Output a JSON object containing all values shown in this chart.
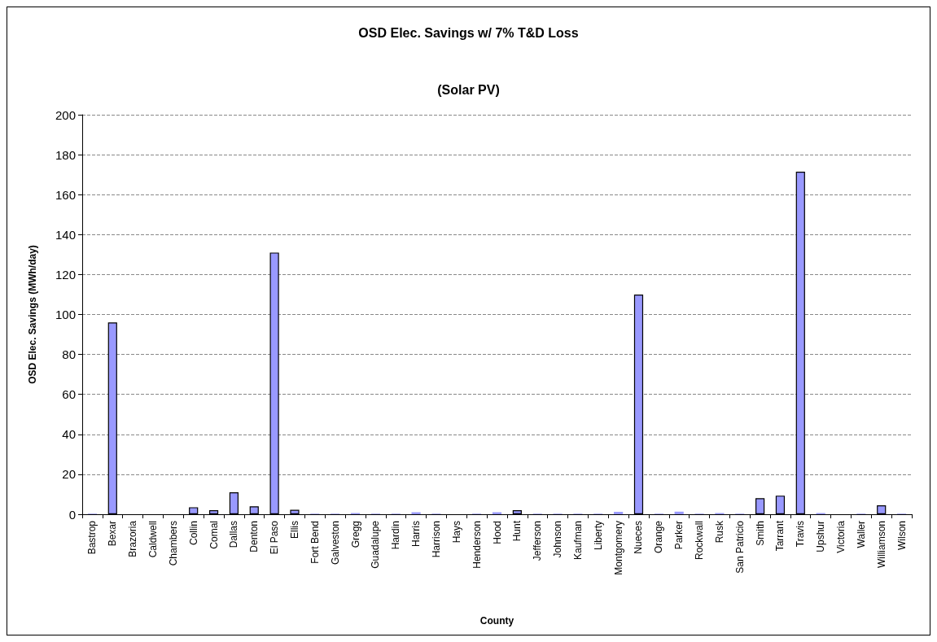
{
  "chart_data": {
    "type": "bar",
    "title": "OSD Elec. Savings w/ 7% T&D Loss",
    "subtitle": "(Solar PV)",
    "xlabel": "County",
    "ylabel": "OSD Elec. Savings (MWh/day)",
    "categories": [
      "Bastrop",
      "Bexar",
      "Brazoria",
      "Caldwell",
      "Chambers",
      "Collin",
      "Comal",
      "Dallas",
      "Denton",
      "El Paso",
      "Ellis",
      "Fort Bend",
      "Galveston",
      "Gregg",
      "Guadalupe",
      "Hardin",
      "Harris",
      "Harrison",
      "Hays",
      "Henderson",
      "Hood",
      "Hunt",
      "Jefferson",
      "Johnson",
      "Kaufman",
      "Liberty",
      "Montgomery",
      "Nueces",
      "Orange",
      "Parker",
      "Rockwall",
      "Rusk",
      "San Patricio",
      "Smith",
      "Tarrant",
      "Travis",
      "Upshur",
      "Victoria",
      "Waller",
      "Williamson",
      "Wilson"
    ],
    "values": [
      0.3,
      96,
      0,
      0,
      0,
      3.5,
      2,
      11,
      4,
      131,
      2.2,
      0.3,
      0.3,
      0.6,
      0.3,
      0.3,
      1,
      0.3,
      0,
      0.3,
      1,
      2,
      0.3,
      0.3,
      0.3,
      0.3,
      1.2,
      110,
      0.3,
      1.3,
      0.3,
      0.6,
      0.3,
      8,
      9.3,
      171.5,
      0.6,
      0,
      0.3,
      4.5,
      0.3
    ],
    "color": "#9999ff",
    "ylim": [
      0,
      200
    ],
    "yticks": [
      0,
      20,
      40,
      60,
      80,
      100,
      120,
      140,
      160,
      180,
      200
    ],
    "grid": "y"
  }
}
